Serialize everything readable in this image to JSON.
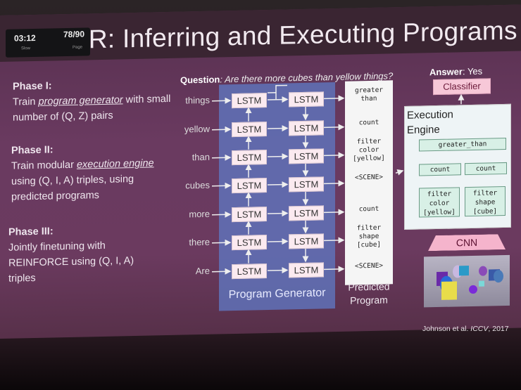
{
  "timer": {
    "elapsed": "03:12",
    "elapsed_label": "Slow",
    "slide": "78/90",
    "slide_label": "Page"
  },
  "slide": {
    "title": "CLEVR: Inferring and Executing Programs",
    "phase1_heading": "Phase I:",
    "phase1_a": "Train ",
    "phase1_em": "program generator",
    "phase1_b": " with small number of (Q, Z) pairs",
    "phase2_heading": "Phase II:",
    "phase2_a": "Train modular ",
    "phase2_em": "execution engine",
    "phase2_b": " using (Q, I, A) triples, using predicted programs",
    "phase3_heading": "Phase III:",
    "phase3_body": "Jointly finetuning with REINFORCE using (Q, I, A) triples",
    "question_label": "Question",
    "question_text": ": Are there more cubes than yellow things?",
    "answer_label": "Answer",
    "answer_text": ": Yes",
    "words": [
      "things",
      "yellow",
      "than",
      "cubes",
      "more",
      "there",
      "Are"
    ],
    "lstm": "LSTM",
    "program_generator": "Program Generator",
    "predicted_program": "Predicted Program",
    "program_tokens": [
      "greater than",
      "count",
      "filter color [yellow]",
      "<SCENE>",
      "count",
      "filter shape [cube]",
      "<SCENE>"
    ],
    "classifier": "Classifier",
    "execution_engine": "Execution Engine",
    "ee_greater": "greater_than",
    "ee_count": "count",
    "ee_filter_color": "filter color [yellow]",
    "ee_filter_shape": "filter shape [cube]",
    "cnn": "CNN",
    "citation_a": "Johnson et al. ",
    "citation_em": "ICCV",
    "citation_b": ", 2017"
  },
  "colors": {
    "slide_bg": "#6b3a5f",
    "generator_block": "#5f72b8",
    "classifier": "#f7c8d8",
    "ee_node": "#d8f0e6"
  }
}
